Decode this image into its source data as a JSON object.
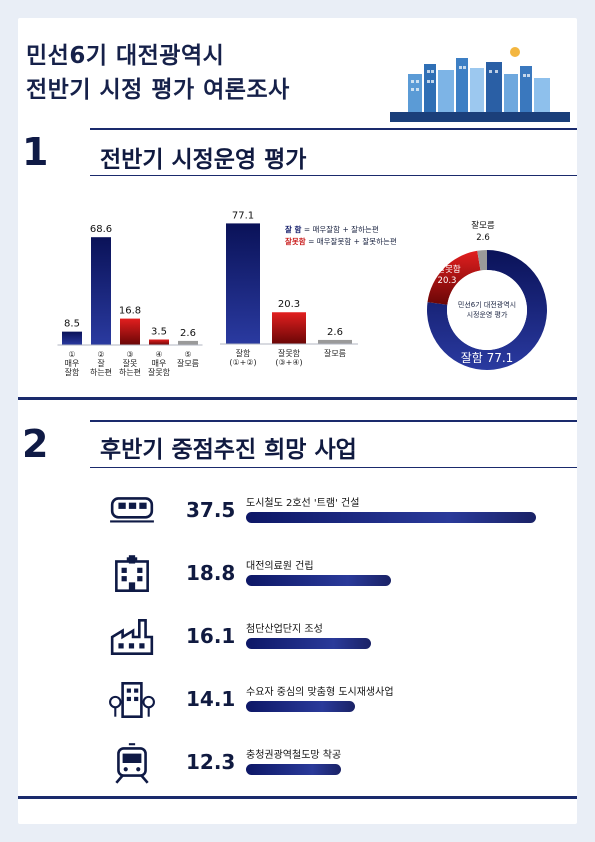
{
  "header": {
    "title_line1": "민선6기 대전광역시",
    "title_line2": "전반기 시정 평가 여론조사"
  },
  "section1": {
    "number": "1",
    "title": "전반기 시정운영 평가"
  },
  "section2": {
    "number": "2",
    "title": "후반기 중점추진 희망 사업"
  },
  "legend": {
    "good_key": "잘   함",
    "good_desc": "= 매우잘함   + 잘하는편",
    "bad_key": "잘못함",
    "bad_desc": "= 매우잘못함 + 잘못하는편"
  },
  "colors": {
    "navy": "#0d1766",
    "red": "#c81a1a",
    "grey": "#9a9a9a"
  },
  "chart_data": [
    {
      "type": "bar",
      "categories": [
        [
          "①",
          "매우",
          "잘함"
        ],
        [
          "②",
          "잘",
          "하는편"
        ],
        [
          "③",
          "잘못",
          "하는편"
        ],
        [
          "④",
          "매우",
          "잘못함"
        ],
        [
          "⑤",
          "잘모름"
        ]
      ],
      "values": [
        8.5,
        68.6,
        16.8,
        3.5,
        2.6
      ],
      "colors": [
        "navy",
        "navy",
        "red",
        "red",
        "grey"
      ],
      "ylim": [
        0,
        70
      ]
    },
    {
      "type": "bar",
      "categories": [
        [
          "잘함",
          "(①+②)"
        ],
        [
          "잘못함",
          "(③+④)"
        ],
        [
          "잘모름"
        ]
      ],
      "values": [
        77.1,
        20.3,
        2.6
      ],
      "colors": [
        "navy",
        "red",
        "grey"
      ],
      "ylim": [
        0,
        78
      ]
    },
    {
      "type": "pie",
      "center_label": [
        "민선6기 대전광역시",
        "시정운영 평가"
      ],
      "slices": [
        {
          "name": "잘함",
          "value": 77.1,
          "color": "navy"
        },
        {
          "name": "잘못함",
          "value": 20.3,
          "color": "red"
        },
        {
          "name": "잘모름",
          "value": 2.6,
          "color": "grey"
        }
      ]
    },
    {
      "type": "bar",
      "orientation": "horizontal",
      "categories": [
        "도시철도 2호선 '트램' 건설",
        "대전의료원 건립",
        "첨단산업단지 조성",
        "수요자 중심의 맞춤형 도시재생사업",
        "충청권광역철도망 착공"
      ],
      "values": [
        37.5,
        18.8,
        16.1,
        14.1,
        12.3
      ],
      "icons": [
        "tram-icon",
        "hospital-icon",
        "factory-icon",
        "city-building-icon",
        "train-icon"
      ]
    }
  ]
}
